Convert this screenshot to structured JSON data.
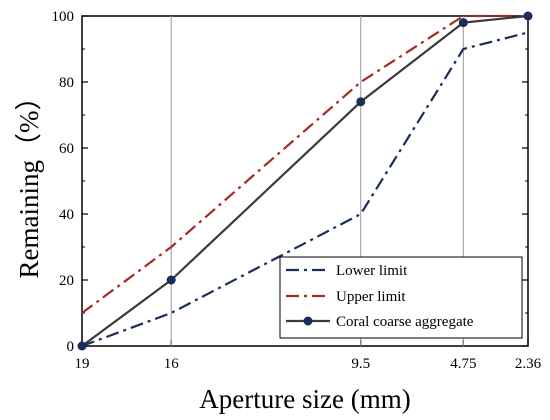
{
  "chart_data": {
    "type": "line",
    "title": "",
    "xlabel": "Aperture size (mm)",
    "ylabel": "Remaining（%）",
    "categories": [
      "19",
      "16",
      "9.5",
      "4.75",
      "2.36"
    ],
    "ylim": [
      0,
      100
    ],
    "yticks": [
      "0",
      "20",
      "40",
      "60",
      "80",
      "100"
    ],
    "grid": false,
    "legend_position": "bottom-right",
    "series": [
      {
        "name": "Lower limit",
        "values": [
          0,
          10,
          40,
          90,
          95
        ],
        "color": "#1a2e5c",
        "style": "dash-dot",
        "marker": "none"
      },
      {
        "name": "Upper limit",
        "values": [
          10,
          30,
          80,
          100,
          100
        ],
        "color": "#a52a22",
        "style": "dash-dot",
        "marker": "none"
      },
      {
        "name": "Coral coarse aggregate",
        "values": [
          0,
          20,
          74,
          98,
          100
        ],
        "color": "#3a3a3a",
        "marker_color": "#1a2e5c",
        "style": "solid",
        "marker": "circle"
      }
    ]
  }
}
